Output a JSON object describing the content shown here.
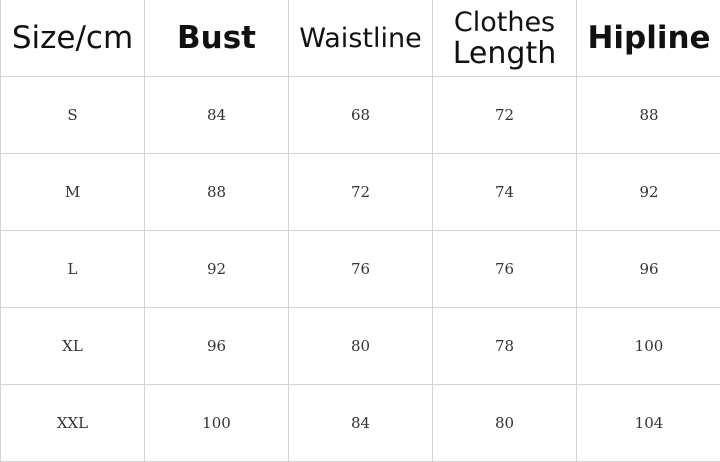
{
  "table": {
    "headers": [
      "Size/cm",
      "Bust",
      "Waistline",
      "Clothes Length",
      "Hipline"
    ],
    "header_lines": {
      "clothes_line1": "Clothes",
      "clothes_line2": "Length"
    },
    "rows": [
      [
        "S",
        "84",
        "68",
        "72",
        "88"
      ],
      [
        "M",
        "88",
        "72",
        "74",
        "92"
      ],
      [
        "L",
        "92",
        "76",
        "76",
        "96"
      ],
      [
        "XL",
        "96",
        "80",
        "78",
        "100"
      ],
      [
        "XXL",
        "100",
        "84",
        "80",
        "104"
      ]
    ]
  }
}
